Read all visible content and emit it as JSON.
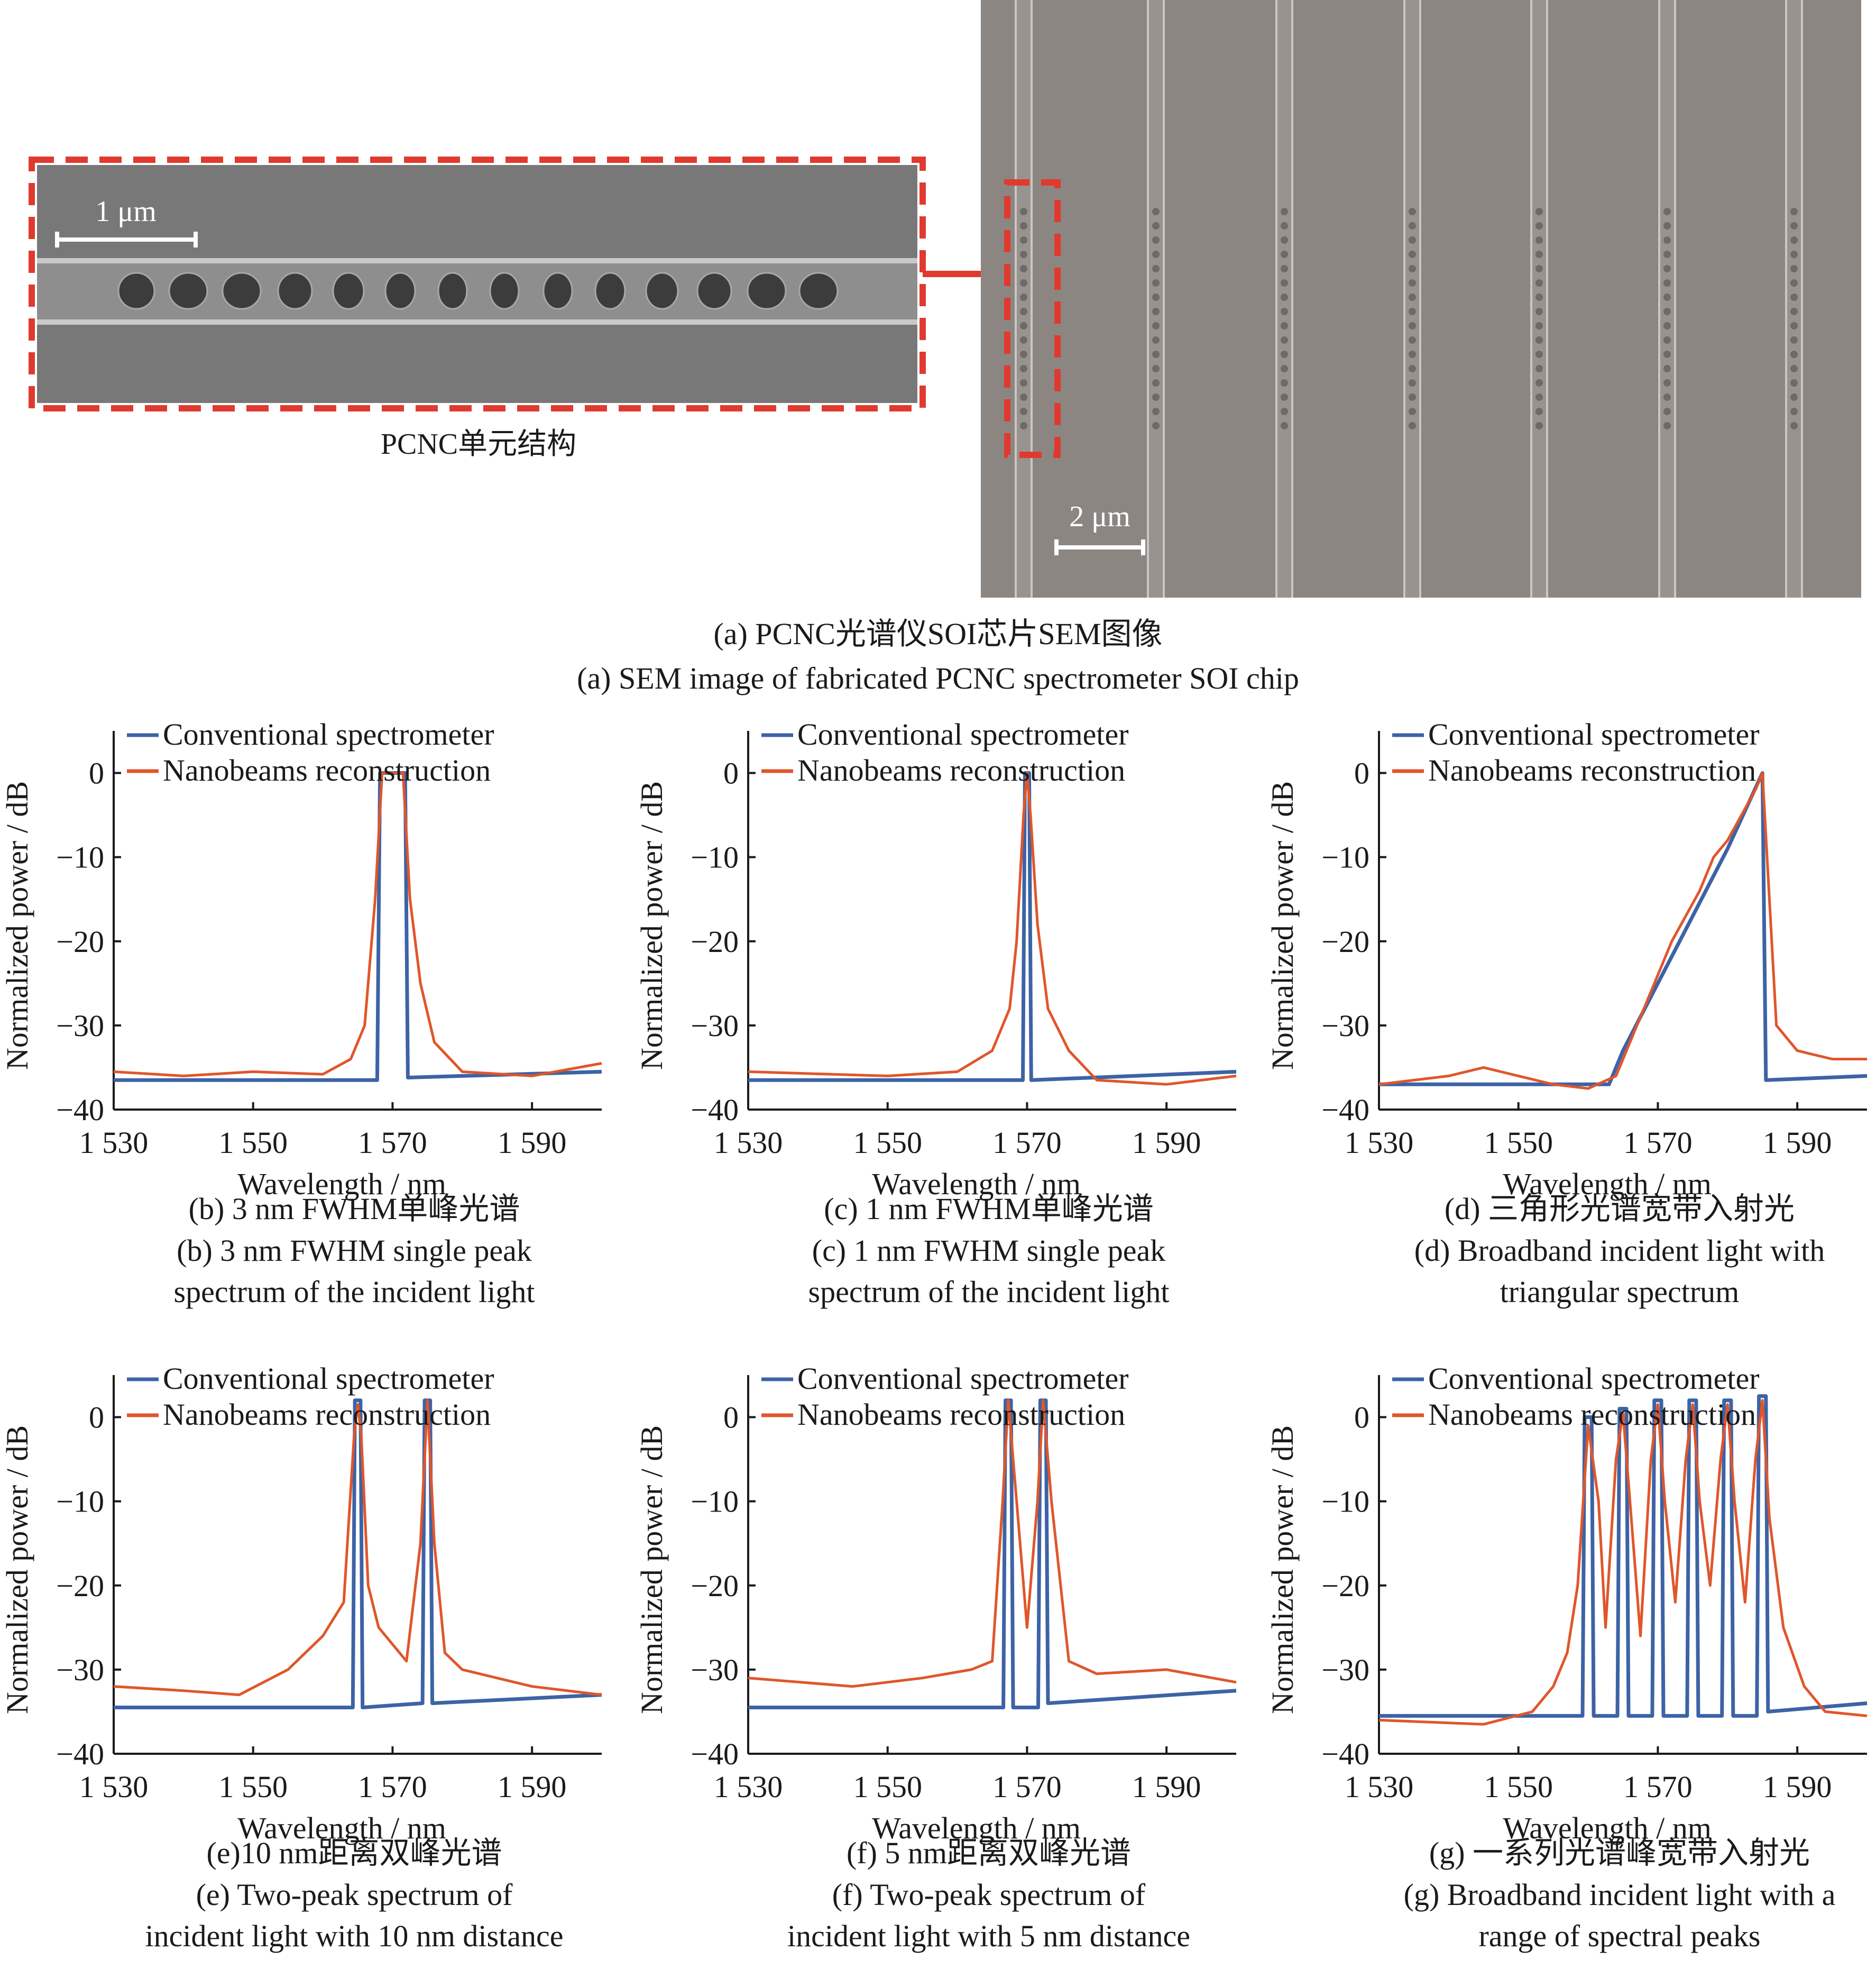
{
  "sem": {
    "unit_label": "PCNC单元结构",
    "inset_scale": "1 μm",
    "chip_scale": "2 μm",
    "caption_cn": "(a) PCNC光谱仪SOI芯片SEM图像",
    "caption_en": "(a) SEM image of fabricated PCNC spectrometer SOI chip",
    "colors": {
      "frame": "#e03a2f",
      "sem_bg": "#8c8683",
      "inset_bg": "#7b7b7b"
    }
  },
  "legend": {
    "blue": "Conventional spectrometer",
    "red": "Nanobeams reconstruction"
  },
  "colors": {
    "blue": "#3d63a6",
    "red": "#e0562b"
  },
  "chart_data": [
    {
      "id": "b",
      "type": "line",
      "xlabel": "Wavelength / nm",
      "ylabel": "Normalized power / dB",
      "xlim": [
        1530,
        1600
      ],
      "ylim": [
        -40,
        5
      ],
      "xticks": [
        "1 530",
        "1 550",
        "1 570",
        "1 590"
      ],
      "yticks": [
        "0",
        "−10",
        "−20",
        "−30",
        "−40"
      ],
      "legend_position": "top-left",
      "caption": [
        "(b) 3 nm FWHM单峰光谱",
        "(b) 3 nm FWHM single peak",
        "spectrum of the incident light"
      ],
      "series": [
        {
          "name": "Conventional spectrometer",
          "color": "#3d63a6",
          "x": [
            1530,
            1567.8,
            1568.2,
            1571.8,
            1572.2,
            1600
          ],
          "y": [
            -36.5,
            -36.5,
            0,
            0,
            -36.2,
            -35.5
          ]
        },
        {
          "name": "Nanobeams reconstruction",
          "color": "#e0562b",
          "x": [
            1530,
            1540,
            1550,
            1560,
            1564,
            1566,
            1567.5,
            1568.5,
            1571.5,
            1572.5,
            1574,
            1576,
            1580,
            1590,
            1600
          ],
          "y": [
            -35.5,
            -36,
            -35.5,
            -35.8,
            -34,
            -30,
            -15,
            0,
            0,
            -15,
            -25,
            -32,
            -35.5,
            -36,
            -34.5
          ]
        }
      ]
    },
    {
      "id": "c",
      "type": "line",
      "xlabel": "Wavelength / nm",
      "ylabel": "Normalized power / dB",
      "xlim": [
        1530,
        1600
      ],
      "ylim": [
        -40,
        5
      ],
      "xticks": [
        "1 530",
        "1 550",
        "1 570",
        "1 590"
      ],
      "yticks": [
        "0",
        "−10",
        "−20",
        "−30",
        "−40"
      ],
      "legend_position": "top-left",
      "caption": [
        "(c) 1 nm FWHM单峰光谱",
        "(c) 1 nm FWHM single peak",
        "spectrum of the incident light"
      ],
      "series": [
        {
          "name": "Conventional spectrometer",
          "color": "#3d63a6",
          "x": [
            1530,
            1569.4,
            1569.7,
            1570.3,
            1570.6,
            1600
          ],
          "y": [
            -36.5,
            -36.5,
            0,
            0,
            -36.5,
            -35.5
          ]
        },
        {
          "name": "Nanobeams reconstruction",
          "color": "#e0562b",
          "x": [
            1530,
            1550,
            1560,
            1565,
            1567.5,
            1568.5,
            1569.5,
            1570,
            1570.5,
            1571.5,
            1573,
            1576,
            1580,
            1590,
            1600
          ],
          "y": [
            -35.5,
            -36,
            -35.5,
            -33,
            -28,
            -20,
            -5,
            0,
            -5,
            -18,
            -28,
            -33,
            -36.5,
            -37,
            -36
          ]
        }
      ]
    },
    {
      "id": "d",
      "type": "line",
      "xlabel": "Wavelength / nm",
      "ylabel": "Normalized power / dB",
      "xlim": [
        1530,
        1600
      ],
      "ylim": [
        -40,
        5
      ],
      "xticks": [
        "1 530",
        "1 550",
        "1 570",
        "1 590"
      ],
      "yticks": [
        "0",
        "−10",
        "−20",
        "−30",
        "−40"
      ],
      "legend_position": "top-left",
      "caption": [
        "(d) 三角形光谱宽带入射光",
        "(d) Broadband incident light with",
        "triangular spectrum"
      ],
      "series": [
        {
          "name": "Conventional spectrometer",
          "color": "#3d63a6",
          "x": [
            1530,
            1563,
            1565,
            1570,
            1575,
            1580,
            1585,
            1585.5,
            1600
          ],
          "y": [
            -37,
            -37,
            -33,
            -25,
            -17,
            -9,
            0,
            -36.5,
            -36
          ]
        },
        {
          "name": "Nanobeams reconstruction",
          "color": "#e0562b",
          "x": [
            1530,
            1540,
            1545,
            1550,
            1555,
            1560,
            1564,
            1568,
            1572,
            1576,
            1578,
            1580,
            1584,
            1585,
            1586,
            1587,
            1590,
            1595,
            1600
          ],
          "y": [
            -37,
            -36,
            -35,
            -36,
            -37,
            -37.5,
            -36,
            -28,
            -20,
            -14,
            -10,
            -8,
            -2,
            0,
            -15,
            -30,
            -33,
            -34,
            -34
          ]
        }
      ]
    },
    {
      "id": "e",
      "type": "line",
      "xlabel": "Wavelength / nm",
      "ylabel": "Normalized power / dB",
      "xlim": [
        1530,
        1600
      ],
      "ylim": [
        -40,
        5
      ],
      "xticks": [
        "1 530",
        "1 550",
        "1 570",
        "1 590"
      ],
      "yticks": [
        "0",
        "−10",
        "−20",
        "−30",
        "−40"
      ],
      "legend_position": "top-left",
      "caption": [
        "(e)10 nm距离双峰光谱",
        "(e) Two-peak spectrum of",
        "incident light with 10 nm distance"
      ],
      "series": [
        {
          "name": "Conventional spectrometer",
          "color": "#3d63a6",
          "x": [
            1530,
            1564.3,
            1564.6,
            1565.4,
            1565.7,
            1574.3,
            1574.6,
            1575.4,
            1575.7,
            1600
          ],
          "y": [
            -34.5,
            -34.5,
            2,
            2,
            -34.5,
            -34,
            2,
            2,
            -34,
            -33
          ]
        },
        {
          "name": "Nanobeams reconstruction",
          "color": "#e0562b",
          "x": [
            1530,
            1540,
            1548,
            1555,
            1560,
            1563,
            1564.5,
            1565,
            1565.5,
            1566.5,
            1568,
            1572,
            1574,
            1575,
            1576,
            1577.5,
            1580,
            1590,
            1600
          ],
          "y": [
            -32,
            -32.5,
            -33,
            -30,
            -26,
            -22,
            -2,
            1.5,
            -2,
            -20,
            -25,
            -29,
            -15,
            2,
            -15,
            -28,
            -30,
            -32,
            -33
          ]
        }
      ]
    },
    {
      "id": "f",
      "type": "line",
      "xlabel": "Wavelength / nm",
      "ylabel": "Normalized power / dB",
      "xlim": [
        1530,
        1600
      ],
      "ylim": [
        -40,
        5
      ],
      "xticks": [
        "1 530",
        "1 550",
        "1 570",
        "1 590"
      ],
      "yticks": [
        "0",
        "−10",
        "−20",
        "−30",
        "−40"
      ],
      "legend_position": "top-left",
      "caption": [
        "(f) 5 nm距离双峰光谱",
        "(f) Two-peak spectrum of",
        "incident light with 5 nm distance"
      ],
      "series": [
        {
          "name": "Conventional spectrometer",
          "color": "#3d63a6",
          "x": [
            1530,
            1566.6,
            1566.9,
            1567.7,
            1568,
            1571.6,
            1571.9,
            1572.7,
            1573,
            1600
          ],
          "y": [
            -34.5,
            -34.5,
            2,
            2,
            -34.5,
            -34.5,
            2,
            2,
            -34,
            -32.5
          ]
        },
        {
          "name": "Nanobeams reconstruction",
          "color": "#e0562b",
          "x": [
            1530,
            1545,
            1555,
            1562,
            1565,
            1566.5,
            1567.3,
            1568.5,
            1570,
            1571.5,
            1572.3,
            1573.5,
            1576,
            1580,
            1590,
            1600
          ],
          "y": [
            -31,
            -32,
            -31,
            -30,
            -29,
            -10,
            2,
            -10,
            -25,
            -10,
            2,
            -10,
            -29,
            -30.5,
            -30,
            -31.5
          ]
        }
      ]
    },
    {
      "id": "g",
      "type": "line",
      "xlabel": "Wavelength / nm",
      "ylabel": "Normalized power / dB",
      "xlim": [
        1530,
        1600
      ],
      "ylim": [
        -40,
        5
      ],
      "xticks": [
        "1 530",
        "1 550",
        "1 570",
        "1 590"
      ],
      "yticks": [
        "0",
        "−10",
        "−20",
        "−30",
        "−40"
      ],
      "legend_position": "top-left",
      "caption": [
        "(g) 一系列光谱峰宽带入射光",
        "(g) Broadband incident light with a",
        "range of spectral peaks"
      ],
      "series": [
        {
          "name": "Conventional spectrometer",
          "color": "#3d63a6",
          "x": [
            1530,
            1559.2,
            1559.5,
            1560.5,
            1560.8,
            1564.2,
            1564.5,
            1565.5,
            1565.8,
            1569.2,
            1569.5,
            1570.5,
            1570.8,
            1574.2,
            1574.5,
            1575.5,
            1575.8,
            1579.2,
            1579.5,
            1580.5,
            1580.8,
            1584.2,
            1584.5,
            1585.5,
            1585.8,
            1600
          ],
          "y": [
            -35.5,
            -35.5,
            0,
            0,
            -35.5,
            -35.5,
            1,
            1,
            -35.5,
            -35.5,
            2,
            2,
            -35.5,
            -35.5,
            2,
            2,
            -35.5,
            -35.5,
            2,
            2,
            -35.5,
            -35.5,
            2.5,
            2.5,
            -35,
            -34
          ]
        },
        {
          "name": "Nanobeams reconstruction",
          "color": "#e0562b",
          "x": [
            1530,
            1545,
            1552,
            1555,
            1557,
            1558.5,
            1560,
            1561.5,
            1562.5,
            1564,
            1565,
            1566,
            1567.5,
            1569,
            1570,
            1571,
            1572.5,
            1574,
            1575,
            1576,
            1577.5,
            1579,
            1580,
            1581,
            1582.5,
            1584,
            1585,
            1586,
            1588,
            1591,
            1594,
            1600
          ],
          "y": [
            -36,
            -36.5,
            -35,
            -32,
            -28,
            -20,
            -1,
            -10,
            -25,
            -5,
            0.5,
            -10,
            -26,
            -5,
            1.5,
            -10,
            -22,
            -5,
            1.5,
            -10,
            -20,
            -5,
            1.5,
            -10,
            -22,
            -5,
            2,
            -12,
            -25,
            -32,
            -35,
            -35.5
          ]
        }
      ]
    }
  ]
}
